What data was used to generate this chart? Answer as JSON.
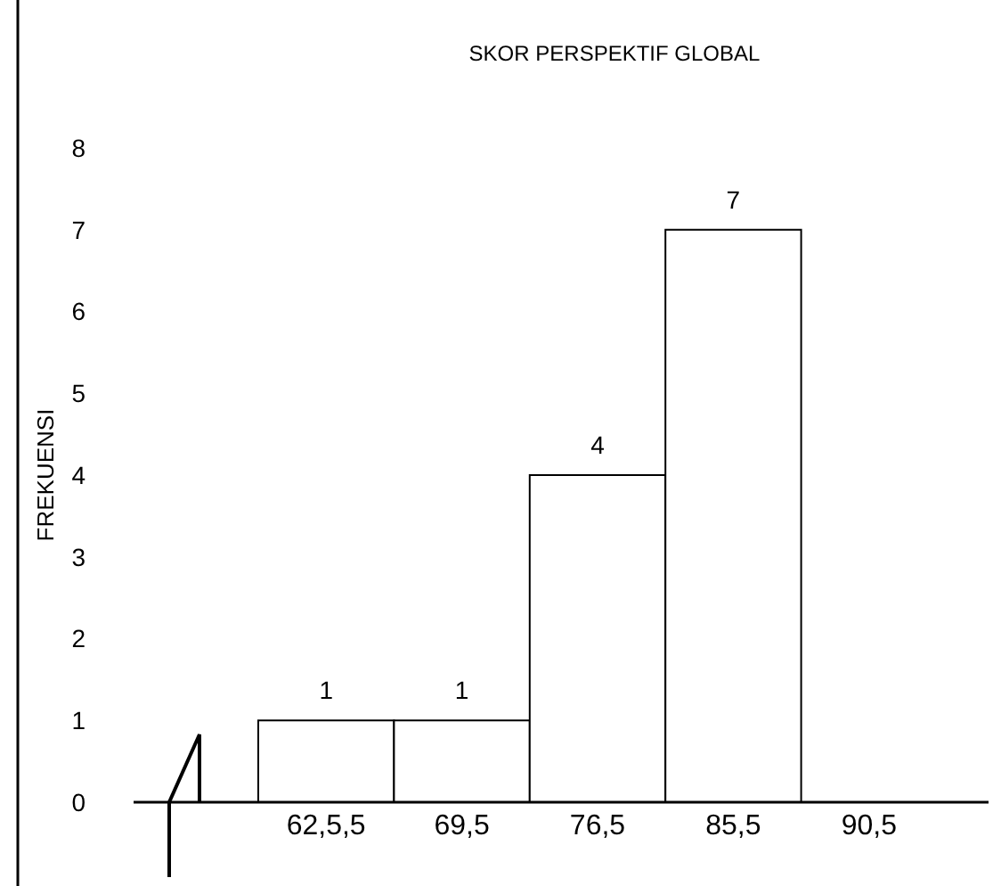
{
  "chart_data": {
    "type": "bar",
    "title": "SKOR PERSPEKTIF GLOBAL",
    "ylabel": "FREKUENSI",
    "categories": [
      "62,5,5",
      "69,5",
      "76,5",
      "85,5",
      "90,5"
    ],
    "values": [
      1,
      1,
      4,
      7,
      null
    ],
    "color": "#ffffff",
    "ylim": [
      0,
      8
    ],
    "yticks": [
      0,
      1,
      2,
      3,
      4,
      5,
      6,
      7,
      8
    ],
    "data_labels": true,
    "grid": false
  }
}
